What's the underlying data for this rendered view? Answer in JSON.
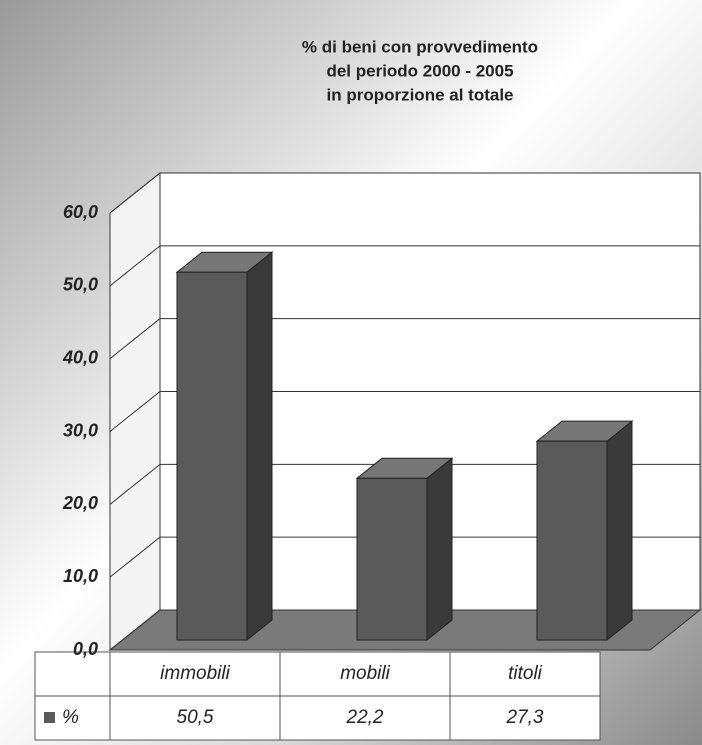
{
  "chart_data": {
    "type": "bar3d",
    "title": [
      "% di beni con provvedimento",
      "del periodo 2000 - 2005",
      "in proporzione al totale"
    ],
    "categories": [
      "immobili",
      "mobili",
      "titoli"
    ],
    "series": [
      {
        "name": "%",
        "color": "#5a5a5a",
        "values": [
          50.5,
          22.2,
          27.3
        ],
        "value_labels": [
          "50,5",
          "22,2",
          "27,3"
        ]
      }
    ],
    "ylim": [
      0,
      60
    ],
    "yticks": [
      {
        "value": 0,
        "label": "0,0"
      },
      {
        "value": 10,
        "label": "10,0"
      },
      {
        "value": 20,
        "label": "20,0"
      },
      {
        "value": 30,
        "label": "30,0"
      },
      {
        "value": 40,
        "label": "40,0"
      },
      {
        "value": 50,
        "label": "50,0"
      },
      {
        "value": 60,
        "label": "60,0"
      }
    ],
    "grid": true
  }
}
